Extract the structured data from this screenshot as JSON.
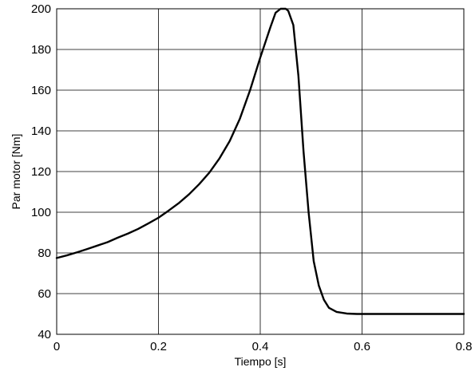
{
  "chart_data": {
    "type": "line",
    "xlabel": "Tiempo [s]",
    "ylabel": "Par motor [Nm]",
    "xlim": [
      0,
      0.8
    ],
    "ylim": [
      40,
      200
    ],
    "x_ticks": [
      "0",
      "0.2",
      "0.4",
      "0.6",
      "0.8"
    ],
    "y_ticks": [
      "40",
      "60",
      "80",
      "100",
      "120",
      "140",
      "160",
      "180",
      "200"
    ],
    "grid": true,
    "series": [
      {
        "color": "#000000",
        "x": [
          0,
          0.02,
          0.04,
          0.06,
          0.08,
          0.1,
          0.12,
          0.14,
          0.16,
          0.18,
          0.2,
          0.22,
          0.24,
          0.26,
          0.28,
          0.3,
          0.32,
          0.34,
          0.36,
          0.38,
          0.4,
          0.42,
          0.43,
          0.44,
          0.45,
          0.455,
          0.465,
          0.475,
          0.485,
          0.495,
          0.505,
          0.515,
          0.525,
          0.535,
          0.55,
          0.57,
          0.59,
          0.62,
          0.7,
          0.8
        ],
        "y": [
          77.5,
          78.8,
          80.3,
          81.9,
          83.6,
          85.3,
          87.5,
          89.5,
          91.8,
          94.5,
          97.3,
          100.8,
          104.5,
          108.8,
          113.8,
          119.5,
          126.5,
          135.0,
          146.0,
          160.0,
          176.0,
          191.0,
          198.0,
          200.0,
          200.0,
          199.0,
          192.0,
          167.0,
          130.0,
          100.0,
          76.0,
          64.0,
          57.0,
          53.0,
          51.0,
          50.2,
          50.0,
          50.0,
          50.0,
          50.0
        ]
      }
    ]
  }
}
